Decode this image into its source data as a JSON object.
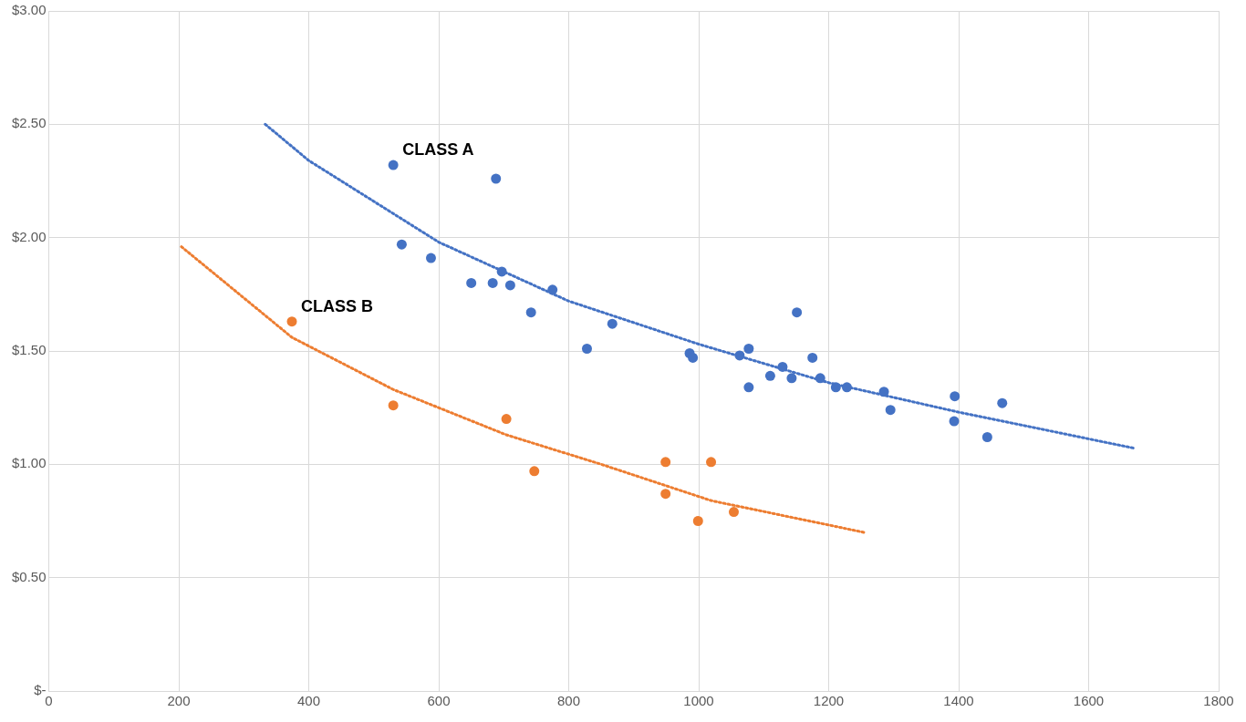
{
  "chart_data": {
    "type": "scatter",
    "marker": "circle",
    "grid": true,
    "legend": false,
    "xlim": [
      0,
      1800
    ],
    "xticks": [
      0,
      200,
      400,
      600,
      800,
      1000,
      1200,
      1400,
      1600,
      1800
    ],
    "ylim": [
      0,
      3
    ],
    "yticks": [
      {
        "value": 0,
        "label": "$-"
      },
      {
        "value": 0.5,
        "label": "$0.50"
      },
      {
        "value": 1,
        "label": "$1.00"
      },
      {
        "value": 1.5,
        "label": "$1.50"
      },
      {
        "value": 2,
        "label": "$2.00"
      },
      {
        "value": 2.5,
        "label": "$2.50"
      },
      {
        "value": 3,
        "label": "$3.00"
      }
    ],
    "series": [
      {
        "type": "scatter",
        "name": "CLASS A",
        "color": "#4472c4",
        "x": [
          530,
          543,
          588,
          650,
          688,
          683,
          697,
          710,
          742,
          775,
          828,
          867,
          986,
          991,
          1063,
          1077,
          1077,
          1110,
          1129,
          1143,
          1151,
          1175,
          1187,
          1211,
          1228,
          1285,
          1295,
          1394,
          1393,
          1444,
          1467
        ],
        "values": [
          2.32,
          1.97,
          1.91,
          1.8,
          2.26,
          1.8,
          1.85,
          1.79,
          1.67,
          1.77,
          1.51,
          1.62,
          1.49,
          1.47,
          1.48,
          1.51,
          1.34,
          1.39,
          1.43,
          1.38,
          1.67,
          1.47,
          1.38,
          1.34,
          1.34,
          1.32,
          1.24,
          1.3,
          1.19,
          1.12,
          1.27
        ]
      },
      {
        "type": "scatter",
        "name": "CLASS B",
        "color": "#ed7d31",
        "x": [
          374,
          530,
          704,
          747,
          949,
          949,
          999,
          1019,
          1054
        ],
        "values": [
          1.63,
          1.26,
          1.2,
          0.97,
          1.01,
          0.87,
          0.75,
          1.01,
          0.79
        ]
      },
      {
        "type": "line",
        "color": "#4472c4",
        "line_style": "dotted",
        "marker": "none",
        "x": [
          333,
          400,
          600,
          800,
          1000,
          1200,
          1400,
          1672
        ],
        "values": [
          2.5,
          2.34,
          1.98,
          1.72,
          1.53,
          1.36,
          1.23,
          1.07
        ]
      },
      {
        "type": "line",
        "color": "#ed7d31",
        "line_style": "dotted",
        "marker": "none",
        "x": [
          204,
          374,
          530,
          704,
          850,
          1019,
          1254
        ],
        "values": [
          1.96,
          1.56,
          1.33,
          1.13,
          1.0,
          0.84,
          0.7
        ]
      }
    ]
  }
}
